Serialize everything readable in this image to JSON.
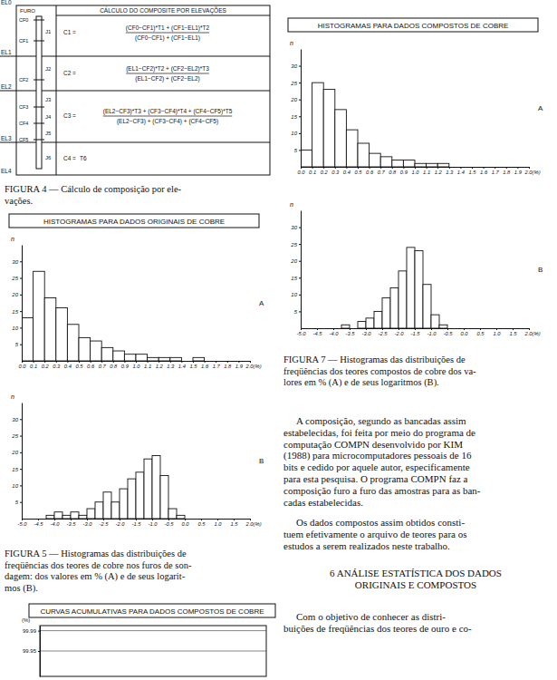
{
  "document": {
    "figure4": {
      "title": "CÁLCULO DO COMPOSITE POR ELEVAÇÕES",
      "hole_label": "FURO",
      "elevations": [
        "EL0",
        "EL1",
        "EL2",
        "EL3",
        "EL4"
      ],
      "contacts": [
        "CF0",
        "CF1",
        "CF2",
        "CF3",
        "CF4",
        "CF5"
      ],
      "samples": [
        "J1",
        "J2",
        "J3",
        "J4",
        "J5",
        "J6"
      ],
      "formulas": [
        {
          "lhs": "C1 =",
          "numerator": "(CF0−CF1)*T1 + (CF1−EL1)*T2",
          "denominator": "(CF0−CF1) + (CF1−EL1)"
        },
        {
          "lhs": "C2 =",
          "numerator": "(EL1−CF2)*T2 + (CF2−EL2)*T3",
          "denominator": "(EL1−CF2) + (CF2−EL2)"
        },
        {
          "lhs": "C3 =",
          "numerator": "(EL2−CF3)*T3 + (CF3−CF4)*T4 + (CF4−CF5)*T5",
          "denominator": "(EL2−CF3) + (CF3−CF4) + (CF4−CF5)"
        },
        {
          "lhs": "C4 =",
          "expression": "T6"
        }
      ]
    },
    "figure4_caption": [
      "FIGURA 4 — Cálculo de composição por ele-",
      "vações."
    ],
    "figure5_caption": [
      "FIGURA 5 — Histogramas das distribuições de",
      "freqüências dos teores de cobre nos furos de son-",
      "dagem: dos valores em % (A) e de seus logarit-",
      "mos (B)."
    ],
    "figure7_caption": [
      "FIGURA 7 — Histogramas das distribuições de",
      "freqüências dos teores compostos de cobre dos va-",
      "lores em % (A) e de seus logaritmos (B)."
    ],
    "paragraphs": [
      [
        "A composição, segundo as bancadas assim",
        "estabelecidas, foi feita por meio do programa de",
        "computação COMPN desenvolvido por KIM",
        "(1988) para microcomputadores pessoais de 16",
        "bits e cedido por aquele autor, especificamente",
        "para esta pesquisa. O programa COMPN faz a",
        "composição furo a furo das amostras para as ban-",
        "cadas estabelecidas."
      ],
      [
        "Os dados compostos assim obtidos consti-",
        "tuem efetivamente o arquivo de teores para os",
        "estudos a serem realizados neste trabalho."
      ]
    ],
    "heading": [
      "6 ANÁLISE ESTATÍSTICA DOS DADOS",
      "ORIGINAIS E COMPOSTOS"
    ],
    "last_paragraph": [
      "Com o objetivo de conhecer as distri-",
      "buições de freqüências dos teores de ouro e co-"
    ]
  },
  "chart_data": [
    {
      "type": "histogram",
      "title": "HISTOGRAMAS PARA DADOS ORIGINAIS DE COBRE",
      "ylabel": "n",
      "annotations": [
        "A"
      ],
      "bins": [
        0,
        0.1,
        0.2,
        0.3,
        0.4,
        0.5,
        0.6,
        0.7,
        0.8,
        0.9,
        1,
        1.1,
        1.2,
        1.3,
        1.4,
        1.5,
        1.6,
        1.7,
        1.8,
        1.9,
        2
      ],
      "counts": [
        13,
        27,
        19,
        16,
        11,
        7,
        6,
        4,
        3,
        2,
        2,
        1,
        1,
        1,
        0,
        1,
        0,
        0,
        0,
        0
      ],
      "color": "#ffffff",
      "xlim": [
        0,
        2
      ],
      "ylim": [
        0,
        35
      ],
      "xticks": [
        {
          "value": 0,
          "label": "0.0"
        },
        0.1,
        0.2,
        0.3,
        0.4,
        0.5,
        0.6,
        0.7,
        0.8,
        0.9,
        {
          "value": 1,
          "label": "1.0"
        },
        1.1,
        1.2,
        1.3,
        1.4,
        1.5,
        1.6,
        1.7,
        1.8,
        1.9,
        {
          "value": 2,
          "label": "2.0(%)"
        }
      ],
      "yticks": [
        5,
        10,
        15,
        20,
        25,
        30
      ]
    },
    {
      "type": "histogram",
      "ylabel": "n",
      "annotations": [
        "B"
      ],
      "bins": [
        -4.25,
        -4,
        -3.75,
        -3.5,
        -3.25,
        -3,
        -2.75,
        -2.5,
        -2.25,
        -2,
        -1.75,
        -1.5,
        -1.25,
        -1,
        -0.75,
        -0.5,
        -0.25,
        0
      ],
      "counts": [
        1,
        2,
        1,
        2,
        1,
        3,
        5,
        8,
        5,
        9,
        12,
        14,
        18,
        19,
        13,
        3,
        1
      ],
      "color": "#ffffff",
      "xlim": [
        -5,
        2
      ],
      "ylim": [
        0,
        35
      ],
      "xticks": [
        {
          "value": -5,
          "label": "-5.0"
        },
        -4.5,
        {
          "value": -4,
          "label": "-4.0"
        },
        -3.5,
        {
          "value": -3,
          "label": "-3.0"
        },
        -2.5,
        {
          "value": -2,
          "label": "-2.0"
        },
        -1.5,
        {
          "value": -1,
          "label": "-1.0"
        },
        -0.5,
        {
          "value": 0,
          "label": "0.0"
        },
        0.5,
        {
          "value": 1,
          "label": "1.0"
        },
        1.5,
        {
          "value": 2,
          "label": "2.0(%)"
        }
      ],
      "yticks": [
        5,
        10,
        15,
        20,
        25,
        30
      ]
    },
    {
      "type": "histogram",
      "title": "HISTOGRAMAS PARA DADOS COMPOSTOS DE COBRE",
      "ylabel": "n",
      "annotations": [
        "A"
      ],
      "bins": [
        0,
        0.1,
        0.2,
        0.3,
        0.4,
        0.5,
        0.6,
        0.7,
        0.8,
        0.9,
        1,
        1.1,
        1.2,
        1.3,
        1.4,
        1.5,
        1.6,
        1.7,
        1.8,
        1.9,
        2
      ],
      "counts": [
        5,
        25,
        23,
        17,
        11,
        7,
        4,
        3,
        2,
        2,
        1,
        1,
        1,
        0,
        0,
        0,
        0,
        0,
        0,
        0
      ],
      "color": "#ffffff",
      "xlim": [
        0,
        2
      ],
      "ylim": [
        0,
        35
      ],
      "xticks": [
        {
          "value": 0,
          "label": "0.0"
        },
        0.1,
        0.2,
        0.3,
        0.4,
        0.5,
        0.6,
        0.7,
        0.8,
        0.9,
        {
          "value": 1,
          "label": "1.0"
        },
        1.1,
        1.2,
        1.3,
        1.4,
        1.5,
        1.6,
        1.7,
        1.8,
        1.9,
        {
          "value": 2,
          "label": "2.0(%)"
        }
      ],
      "yticks": [
        5,
        10,
        15,
        20,
        25,
        30
      ]
    },
    {
      "type": "histogram",
      "ylabel": "n",
      "annotations": [
        "B"
      ],
      "bins": [
        -3.75,
        -3.5,
        -3.25,
        -3,
        -2.75,
        -2.5,
        -2.25,
        -2,
        -1.75,
        -1.5,
        -1.25,
        -1,
        -0.75,
        -0.5,
        -0.25
      ],
      "counts": [
        1,
        0,
        2,
        3,
        5,
        9,
        12,
        17,
        24,
        23,
        13,
        4,
        1,
        0
      ],
      "color": "#ffffff",
      "xlim": [
        -5,
        2
      ],
      "ylim": [
        0,
        35
      ],
      "xticks": [
        {
          "value": -5,
          "label": "-5.0"
        },
        -4.5,
        {
          "value": -4,
          "label": "-4.0"
        },
        -3.5,
        {
          "value": -3,
          "label": "-3.0"
        },
        -2.5,
        {
          "value": -2,
          "label": "-2.0"
        },
        -1.5,
        {
          "value": -1,
          "label": "-1.0"
        },
        -0.5,
        {
          "value": 0,
          "label": "0.0"
        },
        0.5,
        {
          "value": 1,
          "label": "1.0"
        },
        1.5,
        {
          "value": 2,
          "label": "2.0(%)"
        }
      ],
      "yticks": [
        5,
        10,
        15,
        20,
        25,
        30
      ]
    },
    {
      "type": "line",
      "title": "CURVAS ACUMULATIVAS PARA DADOS COMPOSTOS DE COBRE",
      "ylabel": "(%)",
      "ylim": [
        99.9,
        100
      ],
      "yticks": [
        99.95,
        99.99
      ],
      "grid": true
    }
  ]
}
